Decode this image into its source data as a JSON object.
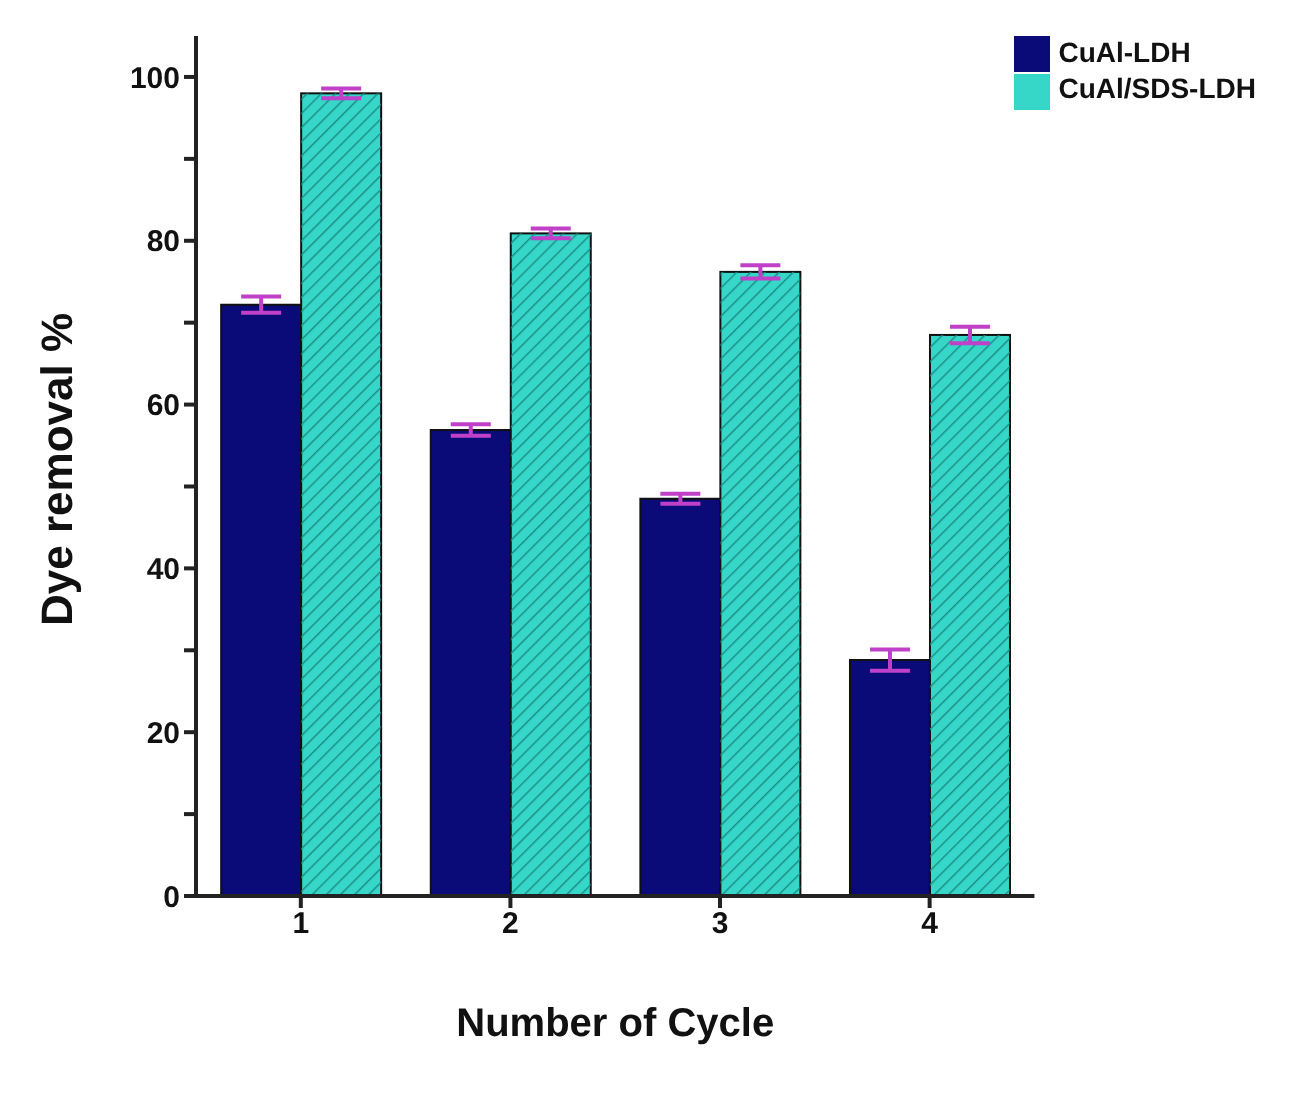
{
  "chart_data": {
    "type": "bar",
    "xlabel": "Number of Cycle",
    "ylabel": "Dye removal %",
    "categories": [
      "1",
      "2",
      "3",
      "4"
    ],
    "series": [
      {
        "name": "CuAl-LDH",
        "color": "#0a0a78",
        "values": [
          72.2,
          56.9,
          48.5,
          28.8
        ],
        "errors": [
          1,
          0.7,
          0.6,
          1.3
        ]
      },
      {
        "name": "CuAl/SDS-LDH",
        "color": "#36d6c8",
        "values": [
          98.0,
          80.9,
          76.2,
          68.5
        ],
        "errors": [
          0.6,
          0.6,
          0.8,
          1
        ]
      }
    ],
    "ylim": [
      0,
      105
    ],
    "yticks": [
      0,
      {
        "value": 10,
        "label": null
      },
      20,
      {
        "value": 30,
        "label": null
      },
      40,
      {
        "value": 50,
        "label": null
      },
      60,
      {
        "value": 70,
        "label": null
      },
      80,
      {
        "value": 90,
        "label": null
      },
      100
    ],
    "legend": "top right",
    "grid": false
  }
}
